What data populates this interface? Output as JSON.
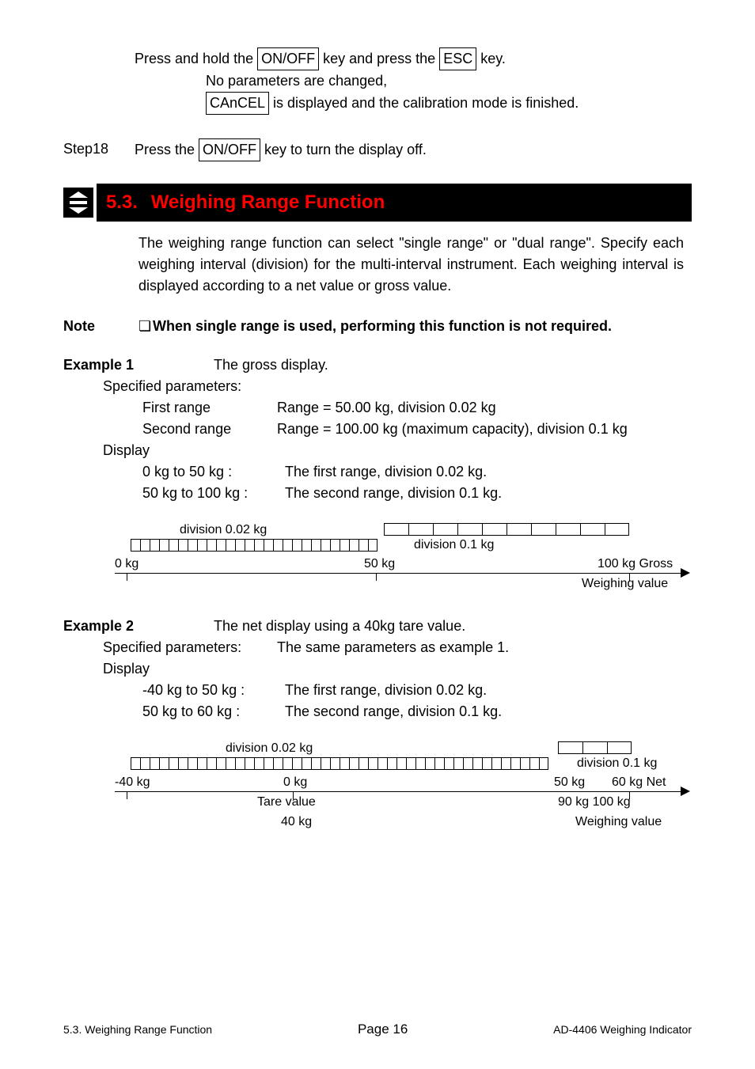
{
  "intro": {
    "line1_pre": "Press and hold the ",
    "key_onoff": "ON/OFF",
    "line1_mid": " key and press the ",
    "key_esc": "ESC",
    "line1_post": " key.",
    "line2": "No parameters are changed,",
    "key_cancel": " CAnCEL",
    "line3_post": " is displayed and the calibration mode is finished."
  },
  "step18": {
    "label": "Step18",
    "pre": "Press the ",
    "key": "ON/OFF",
    "post": " key to turn the display off."
  },
  "section": {
    "num": "5.3.",
    "title": "Weighing Range Function",
    "body": "The weighing range function can select \"single range\" or \"dual range\". Specify each weighing interval (division) for the multi-interval instrument. Each weighing interval is displayed according to a net value or gross value."
  },
  "note": {
    "label": "Note",
    "bullet": "❏",
    "text": "When single range is used, performing this function is not required."
  },
  "example1": {
    "label": "Example 1",
    "desc": "The gross display.",
    "spec": "Specified parameters:",
    "first_k": "First range",
    "first_v": "Range = 50.00 kg, division 0.02 kg",
    "second_k": "Second range",
    "second_v": "Range = 100.00 kg (maximum capacity), division 0.1 kg",
    "display": "Display",
    "d1_k": "0 kg to 50 kg :",
    "d1_v": "The first range, division 0.02 kg.",
    "d2_k": "50 kg to 100 kg :",
    "d2_v": "The second range, division 0.1 kg."
  },
  "diagram1": {
    "div1_label": "division    0.02 kg",
    "div2_label": "division     0.1 kg",
    "x0": "0 kg",
    "x50": "50 kg",
    "x100": "100 kg Gross",
    "weighing": "Weighing value",
    "fine_tick_count": 26,
    "fine_tick_width": 12,
    "coarse_tick_count": 10,
    "coarse_tick_width": 31
  },
  "example2": {
    "label": "Example 2",
    "desc": "The net display using a 40kg tare value.",
    "spec": "Specified parameters:",
    "spec_v": "The same parameters as example 1.",
    "display": "Display",
    "d1_k": "-40 kg to 50 kg :",
    "d1_v": "The first range, division 0.02 kg.",
    "d2_k": "50 kg to 60 kg :",
    "d2_v": "The second range, division 0.1 kg."
  },
  "diagram2": {
    "div1_label": "division    0.02 kg",
    "div2_label": "division 0.1 kg",
    "x_neg40": "-40 kg",
    "x0": "0 kg",
    "x50": "50 kg",
    "x60": "60 kg Net",
    "tare": "Tare value",
    "tare_val": "40 kg",
    "w90": "90 kg 100 kg",
    "weighing": "Weighing value",
    "fine_tick_count": 44,
    "fine_tick_width": 12,
    "coarse_tick_count": 3,
    "coarse_tick_width": 31
  },
  "footer": {
    "left": "5.3. Weighing Range Function",
    "center": "Page 16",
    "right": "AD-4406 Weighing Indicator"
  }
}
